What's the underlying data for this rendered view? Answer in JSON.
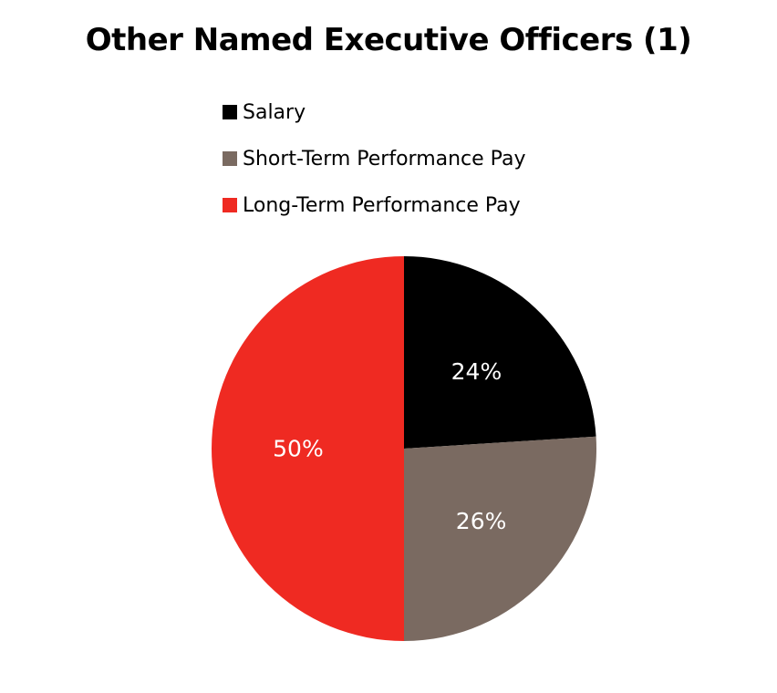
{
  "chart_data": {
    "type": "pie",
    "title": "Other Named Executive Officers (1)",
    "legend_position": "top",
    "slices": [
      {
        "name": "Salary",
        "value": 24,
        "label": "24%",
        "color": "#000000"
      },
      {
        "name": "Short-Term Performance Pay",
        "value": 26,
        "label": "26%",
        "color": "#7a6a61"
      },
      {
        "name": "Long-Term Performance Pay",
        "value": 50,
        "label": "50%",
        "color": "#ef2a22"
      }
    ]
  }
}
